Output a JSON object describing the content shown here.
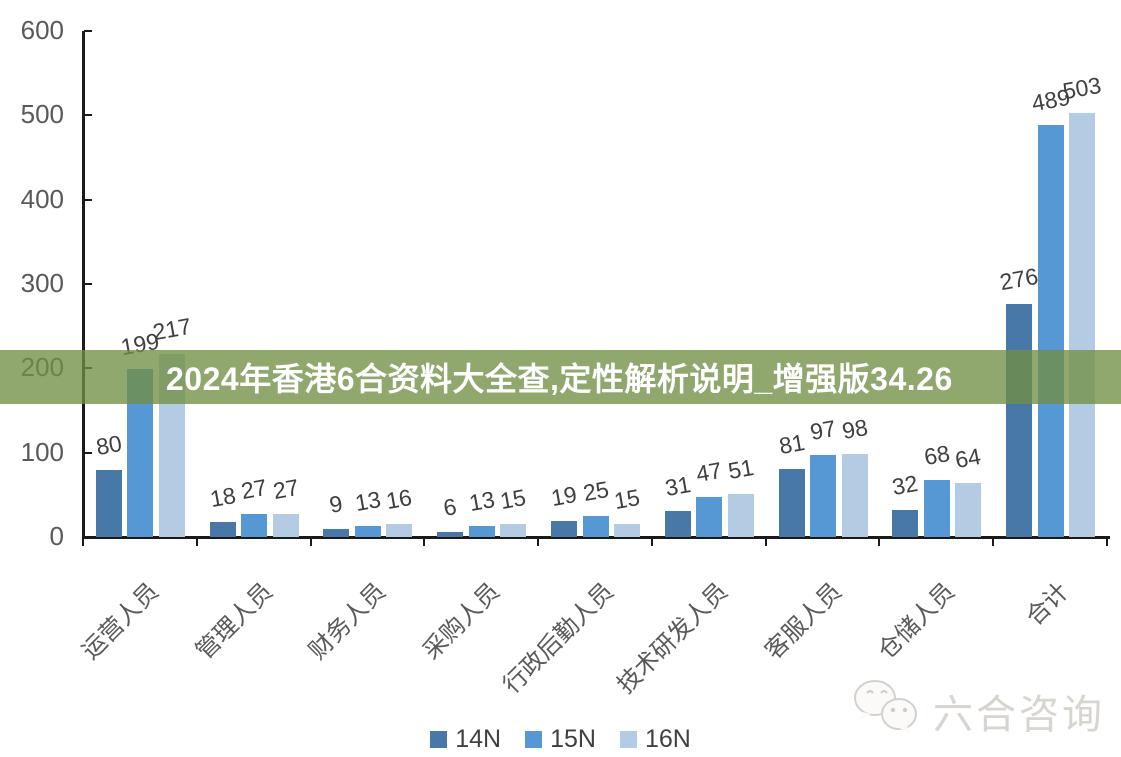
{
  "chart_data": {
    "type": "bar",
    "title": "",
    "categories": [
      "运营人员",
      "管理人员",
      "财务人员",
      "采购人员",
      "行政后勤人员",
      "技术研发人员",
      "客服人员",
      "仓储人员",
      "合计"
    ],
    "series": [
      {
        "name": "14N",
        "color": "#4878a8",
        "values": [
          80,
          18,
          9,
          6,
          19,
          31,
          81,
          32,
          276
        ]
      },
      {
        "name": "15N",
        "color": "#5598d4",
        "values": [
          199,
          27,
          13,
          13,
          25,
          47,
          97,
          68,
          489
        ]
      },
      {
        "name": "16N",
        "color": "#b4cbe4",
        "values": [
          217,
          27,
          16,
          15,
          15,
          51,
          98,
          64,
          503
        ]
      }
    ],
    "data_labels_shown": true,
    "xlabel": "",
    "ylabel": "",
    "ylim": [
      0,
      600
    ],
    "yticks": [
      0,
      100,
      200,
      300,
      400,
      500,
      600
    ],
    "grid": false,
    "legend_position": "bottom",
    "axis_color": "#1a1a1a",
    "tick_label_color": "#595959",
    "value_label_color": "#3f3f3f"
  },
  "overlay_banner": {
    "text": "2024年香港6合资料大全查,定性解析说明_增强版34.26",
    "text_color": "#ffffff",
    "background_color": "rgba(113,142,68,0.78)"
  },
  "watermark": {
    "icon": "chat-bubbles-icon",
    "text": "六合咨询"
  }
}
